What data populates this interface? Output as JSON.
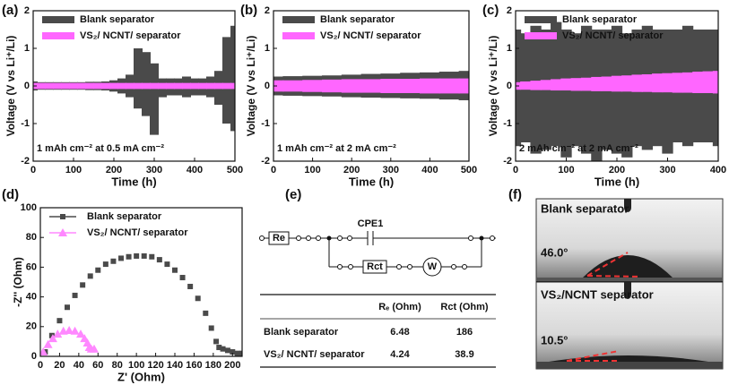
{
  "chart_data": [
    {
      "type": "band",
      "panel": "(a)",
      "ylabel": "Voltage (V vs Li⁺/Li)",
      "xlabel": "Time (h)",
      "annotation": "1 mAh cm⁻² at 0.5 mA cm⁻²",
      "xlim": [
        0,
        500
      ],
      "xticks": [
        0,
        100,
        200,
        300,
        400,
        500
      ],
      "ylim": [
        -2,
        2
      ],
      "yticks": [
        -2,
        -1,
        0,
        1,
        2
      ],
      "x": [
        0,
        20,
        40,
        60,
        80,
        100,
        120,
        140,
        160,
        180,
        200,
        220,
        240,
        260,
        280,
        300,
        320,
        340,
        360,
        380,
        400,
        420,
        440,
        460,
        480,
        500
      ],
      "series": [
        {
          "name": "Blank separator",
          "color": "#4a4a4a",
          "upper": [
            0.12,
            0.1,
            0.1,
            0.1,
            0.1,
            0.1,
            0.1,
            0.11,
            0.11,
            0.12,
            0.15,
            0.2,
            0.3,
            1.0,
            0.9,
            0.6,
            0.2,
            0.2,
            0.2,
            0.25,
            0.2,
            0.2,
            0.25,
            0.4,
            1.3,
            1.6
          ],
          "lower": [
            -0.12,
            -0.1,
            -0.1,
            -0.1,
            -0.1,
            -0.1,
            -0.1,
            -0.11,
            -0.11,
            -0.12,
            -0.15,
            -0.2,
            -0.3,
            -0.6,
            -0.8,
            -1.3,
            -0.3,
            -0.25,
            -0.25,
            -0.3,
            -0.25,
            -0.25,
            -0.3,
            -0.5,
            -1.0,
            -1.2
          ]
        },
        {
          "name": "VS₂/ NCNT/ separator",
          "color": "#ff66ff",
          "upper": [
            0.08,
            0.08,
            0.08,
            0.08,
            0.08,
            0.08,
            0.08,
            0.08,
            0.08,
            0.08,
            0.08,
            0.08,
            0.08,
            0.08,
            0.08,
            0.08,
            0.08,
            0.08,
            0.08,
            0.08,
            0.08,
            0.08,
            0.08,
            0.08,
            0.08,
            0.08
          ],
          "lower": [
            -0.08,
            -0.08,
            -0.08,
            -0.08,
            -0.08,
            -0.08,
            -0.08,
            -0.08,
            -0.08,
            -0.08,
            -0.08,
            -0.08,
            -0.08,
            -0.08,
            -0.08,
            -0.08,
            -0.08,
            -0.08,
            -0.08,
            -0.08,
            -0.08,
            -0.08,
            -0.08,
            -0.08,
            -0.08,
            -0.08
          ]
        }
      ]
    },
    {
      "type": "band",
      "panel": "(b)",
      "ylabel": "Voltage (V vs Li⁺/Li)",
      "xlabel": "Time (h)",
      "annotation": "1 mAh cm⁻² at 2 mA cm⁻²",
      "xlim": [
        0,
        500
      ],
      "xticks": [
        0,
        100,
        200,
        300,
        400,
        500
      ],
      "ylim": [
        -2,
        2
      ],
      "yticks": [
        -2,
        -1,
        0,
        1,
        2
      ],
      "x": [
        0,
        50,
        100,
        150,
        200,
        250,
        300,
        350,
        400,
        450,
        500
      ],
      "series": [
        {
          "name": "Blank separator",
          "color": "#4a4a4a",
          "upper": [
            0.25,
            0.26,
            0.27,
            0.28,
            0.3,
            0.32,
            0.33,
            0.35,
            0.36,
            0.38,
            0.4
          ],
          "lower": [
            -0.25,
            -0.26,
            -0.27,
            -0.28,
            -0.3,
            -0.31,
            -0.32,
            -0.33,
            -0.34,
            -0.36,
            -0.38
          ]
        },
        {
          "name": "VS₂/ NCNT/ separator",
          "color": "#ff66ff",
          "upper": [
            0.15,
            0.15,
            0.16,
            0.17,
            0.18,
            0.18,
            0.19,
            0.19,
            0.2,
            0.2,
            0.2
          ],
          "lower": [
            -0.15,
            -0.15,
            -0.16,
            -0.17,
            -0.18,
            -0.18,
            -0.19,
            -0.19,
            -0.2,
            -0.2,
            -0.2
          ]
        }
      ]
    },
    {
      "type": "band",
      "panel": "(c)",
      "ylabel": "Voltage (V vs Li⁺/Li)",
      "xlabel": "Time (h)",
      "annotation": "2 mAh cm⁻² at 2 mA cm⁻²",
      "xlim": [
        0,
        400
      ],
      "xticks": [
        0,
        100,
        200,
        300,
        400
      ],
      "ylim": [
        -2,
        2
      ],
      "yticks": [
        -2,
        -1,
        0,
        1,
        2
      ],
      "x": [
        0,
        20,
        40,
        60,
        80,
        100,
        120,
        140,
        160,
        180,
        200,
        220,
        240,
        260,
        280,
        300,
        320,
        340,
        360,
        380,
        400
      ],
      "series": [
        {
          "name": "Blank separator",
          "color": "#4a4a4a",
          "upper": [
            1.5,
            1.4,
            1.6,
            1.5,
            1.7,
            1.5,
            1.4,
            1.6,
            1.5,
            1.5,
            1.6,
            1.4,
            1.5,
            1.6,
            1.5,
            1.5,
            1.5,
            1.6,
            1.5,
            1.5,
            1.5
          ],
          "lower": [
            -1.6,
            -1.5,
            -1.8,
            -1.7,
            -1.6,
            -1.9,
            -1.6,
            -1.8,
            -2.0,
            -1.7,
            -1.8,
            -1.9,
            -1.6,
            -1.7,
            -1.6,
            -1.8,
            -1.5,
            -1.6,
            -1.5,
            -1.5,
            -1.6
          ]
        },
        {
          "name": "VS₂/ NCNT/ separator",
          "color": "#ff66ff",
          "upper": [
            0.1,
            0.12,
            0.14,
            0.16,
            0.18,
            0.2,
            0.21,
            0.22,
            0.24,
            0.25,
            0.27,
            0.28,
            0.3,
            0.31,
            0.33,
            0.34,
            0.35,
            0.36,
            0.38,
            0.39,
            0.4
          ],
          "lower": [
            -0.1,
            -0.1,
            -0.11,
            -0.11,
            -0.12,
            -0.12,
            -0.13,
            -0.13,
            -0.14,
            -0.14,
            -0.15,
            -0.15,
            -0.16,
            -0.16,
            -0.17,
            -0.17,
            -0.18,
            -0.18,
            -0.19,
            -0.19,
            -0.2
          ]
        }
      ]
    },
    {
      "type": "scatter",
      "panel": "(d)",
      "ylabel": "-Z'' (Ohm)",
      "xlabel": "Z' (Ohm)",
      "xlim": [
        0,
        210
      ],
      "xticks": [
        0,
        20,
        40,
        60,
        80,
        100,
        120,
        140,
        160,
        180,
        200
      ],
      "ylim": [
        0,
        100
      ],
      "yticks": [
        0,
        20,
        40,
        60,
        80,
        100
      ],
      "series": [
        {
          "name": "Blank separator",
          "color": "#4a4a4a",
          "marker": "square",
          "x": [
            5,
            12,
            20,
            28,
            36,
            44,
            52,
            60,
            68,
            76,
            84,
            92,
            100,
            108,
            116,
            124,
            132,
            140,
            148,
            156,
            164,
            172,
            178,
            183,
            186,
            190,
            195,
            200,
            205,
            210
          ],
          "values": [
            3,
            14,
            24,
            33,
            41,
            48,
            54,
            58,
            62,
            64,
            66,
            67,
            67.5,
            67.5,
            67,
            65,
            62,
            58,
            53,
            47,
            39,
            29,
            19,
            10,
            6,
            5,
            4,
            3,
            2,
            2
          ]
        },
        {
          "name": "VS₂/ NCNT/ separator",
          "color": "#ff88ff",
          "marker": "triangle",
          "x": [
            3,
            8,
            13,
            18,
            24,
            30,
            36,
            42,
            46,
            49,
            51,
            53,
            56
          ],
          "values": [
            3,
            8,
            12,
            15,
            17,
            17.5,
            17,
            15,
            12,
            9,
            6,
            5,
            5
          ]
        }
      ]
    }
  ],
  "circuit": {
    "panel": "(e)",
    "re": "Re",
    "cpe": "CPE1",
    "rct": "Rct",
    "w": "W"
  },
  "table": {
    "header": [
      "Rₑ (Ohm)",
      "Rct (Ohm)"
    ],
    "rows": [
      [
        "Blank separator",
        "6.48",
        "186"
      ],
      [
        "VS₂/ NCNT/ separator",
        "4.24",
        "38.9"
      ]
    ]
  },
  "photos": {
    "panel": "(f)",
    "top_label": "Blank separator",
    "top_angle": "46.0°",
    "bottom_label": "VS₂/NCNT separator",
    "bottom_angle": "10.5°"
  }
}
